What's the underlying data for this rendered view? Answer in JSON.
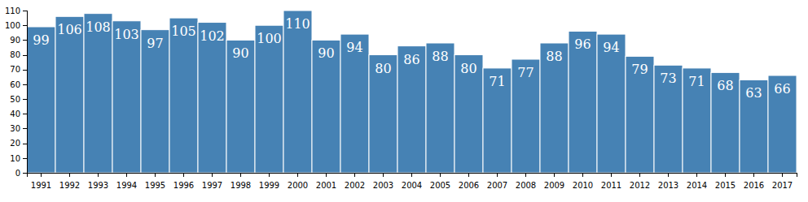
{
  "chart_data": {
    "type": "bar",
    "categories": [
      "1991",
      "1992",
      "1993",
      "1994",
      "1995",
      "1996",
      "1997",
      "1998",
      "1999",
      "2000",
      "2001",
      "2002",
      "2003",
      "2004",
      "2005",
      "2006",
      "2007",
      "2008",
      "2009",
      "2010",
      "2011",
      "2012",
      "2013",
      "2014",
      "2015",
      "2016",
      "2017"
    ],
    "values": [
      99,
      106,
      108,
      103,
      97,
      105,
      102,
      90,
      100,
      110,
      90,
      94,
      80,
      86,
      88,
      80,
      71,
      77,
      88,
      96,
      94,
      79,
      73,
      71,
      68,
      63,
      66
    ],
    "color": "#4682b4",
    "ylim": [
      0,
      110
    ],
    "yticks": [
      0,
      10,
      20,
      30,
      40,
      50,
      60,
      70,
      80,
      90,
      100,
      110
    ],
    "grid": false,
    "data_labels": true
  }
}
